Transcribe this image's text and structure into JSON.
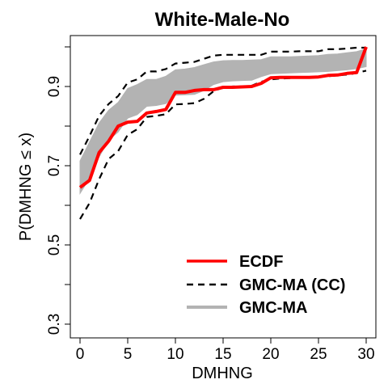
{
  "chart_data": {
    "type": "line",
    "title": "White-Male-No",
    "xlabel": "DMHNG",
    "ylabel": "P(DMHNG ≤ x)",
    "xlim": [
      0,
      30
    ],
    "ylim": [
      0.3,
      1.0
    ],
    "x_ticks": [
      0,
      5,
      10,
      15,
      20,
      25,
      30
    ],
    "y_ticks": [
      0.3,
      0.5,
      0.7,
      0.9
    ],
    "y_minor_ticks": [
      0.4,
      0.6,
      0.8,
      1.0
    ],
    "x_tick_labels": [
      "0",
      "5",
      "10",
      "15",
      "20",
      "25",
      "30"
    ],
    "y_tick_labels": [
      "0.3",
      "0.5",
      "0.7",
      "0.9"
    ],
    "legend": {
      "position": "bottom-right",
      "entries": [
        "ECDF",
        "GMC-MA (CC)",
        "GMC-MA"
      ]
    },
    "series": [
      {
        "name": "ECDF",
        "style": "step-line",
        "color": "#ff0000",
        "x": [
          0,
          1,
          2,
          3,
          4,
          5,
          6,
          7,
          8,
          9,
          10,
          11,
          12,
          13,
          14,
          15,
          16,
          17,
          18,
          19,
          20,
          21,
          22,
          23,
          24,
          25,
          26,
          27,
          28,
          29,
          30
        ],
        "y": [
          0.645,
          0.663,
          0.733,
          0.762,
          0.8,
          0.81,
          0.812,
          0.833,
          0.837,
          0.842,
          0.885,
          0.885,
          0.89,
          0.892,
          0.892,
          0.898,
          0.898,
          0.899,
          0.9,
          0.908,
          0.922,
          0.923,
          0.923,
          0.923,
          0.923,
          0.924,
          0.928,
          0.929,
          0.933,
          0.935,
          1.0
        ]
      },
      {
        "name": "GMC-MA (CC) upper",
        "style": "dashed",
        "color": "#000000",
        "x": [
          0,
          1,
          2,
          3,
          4,
          5,
          6,
          7,
          8,
          9,
          10,
          11,
          12,
          13,
          14,
          15,
          16,
          17,
          18,
          19,
          20,
          21,
          22,
          23,
          24,
          25,
          26,
          27,
          28,
          29,
          30
        ],
        "y": [
          0.728,
          0.775,
          0.826,
          0.856,
          0.876,
          0.91,
          0.918,
          0.938,
          0.938,
          0.944,
          0.958,
          0.96,
          0.962,
          0.97,
          0.978,
          0.98,
          0.98,
          0.98,
          0.98,
          0.98,
          0.988,
          0.988,
          0.988,
          0.989,
          0.989,
          0.989,
          0.994,
          0.994,
          0.996,
          0.998,
          0.998
        ]
      },
      {
        "name": "GMC-MA (CC) lower",
        "style": "dashed",
        "color": "#000000",
        "x": [
          0,
          1,
          2,
          3,
          4,
          5,
          6,
          7,
          8,
          9,
          10,
          11,
          12,
          13,
          14,
          15,
          16,
          17,
          18,
          19,
          20,
          21,
          22,
          23,
          24,
          25,
          26,
          27,
          28,
          29,
          30
        ],
        "y": [
          0.565,
          0.606,
          0.666,
          0.717,
          0.737,
          0.778,
          0.792,
          0.823,
          0.826,
          0.83,
          0.855,
          0.856,
          0.858,
          0.869,
          0.888,
          0.898,
          0.9,
          0.9,
          0.902,
          0.912,
          0.918,
          0.92,
          0.921,
          0.922,
          0.922,
          0.924,
          0.926,
          0.928,
          0.93,
          0.934,
          0.94
        ]
      },
      {
        "name": "GMC-MA",
        "style": "band",
        "color": "#b3b3b3",
        "x": [
          0,
          1,
          2,
          3,
          4,
          5,
          6,
          7,
          8,
          9,
          10,
          11,
          12,
          13,
          14,
          15,
          16,
          17,
          18,
          19,
          20,
          21,
          22,
          23,
          24,
          25,
          26,
          27,
          28,
          29,
          30
        ],
        "upper": [
          0.712,
          0.76,
          0.808,
          0.84,
          0.86,
          0.895,
          0.905,
          0.918,
          0.918,
          0.926,
          0.942,
          0.944,
          0.948,
          0.955,
          0.962,
          0.965,
          0.966,
          0.966,
          0.967,
          0.968,
          0.975,
          0.975,
          0.975,
          0.976,
          0.977,
          0.978,
          0.981,
          0.982,
          0.985,
          0.988,
          0.995
        ],
        "lower": [
          0.63,
          0.668,
          0.722,
          0.765,
          0.785,
          0.82,
          0.829,
          0.85,
          0.852,
          0.857,
          0.878,
          0.879,
          0.88,
          0.89,
          0.905,
          0.912,
          0.914,
          0.915,
          0.916,
          0.925,
          0.932,
          0.933,
          0.934,
          0.935,
          0.936,
          0.937,
          0.938,
          0.94,
          0.942,
          0.945,
          0.95
        ]
      }
    ]
  }
}
